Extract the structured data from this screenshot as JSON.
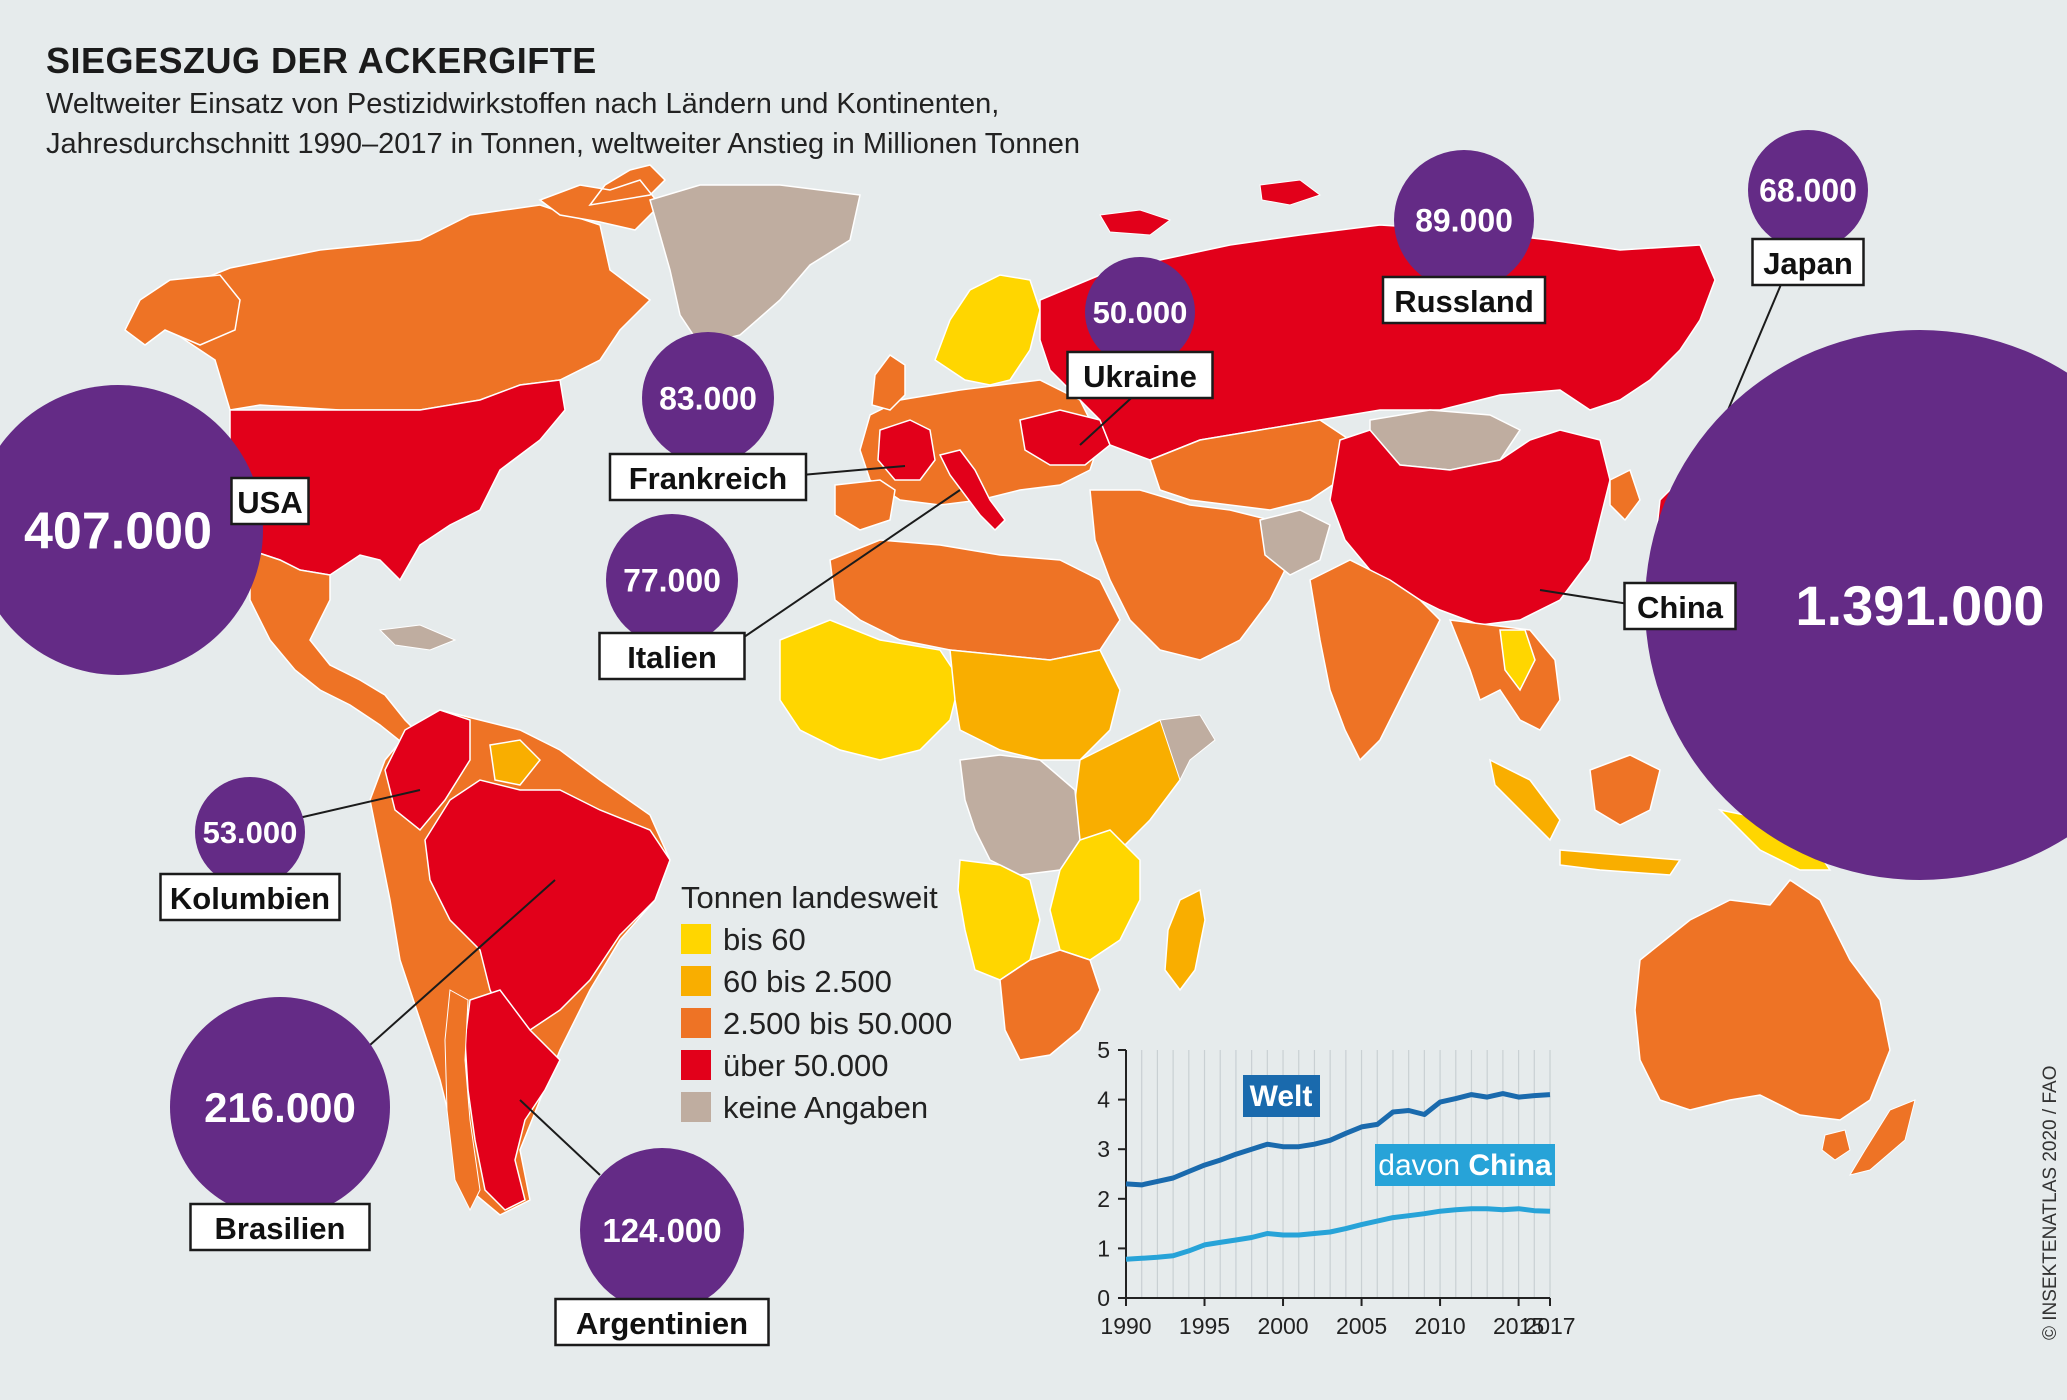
{
  "header": {
    "title": "SIEGESZUG DER ACKERGIFTE",
    "subtitle_line1": "Weltweiter Einsatz von Pestizidwirkstoffen nach Ländern und Kontinenten,",
    "subtitle_line2": "Jahresdurchschnitt 1990–2017 in Tonnen, weltweiter Anstieg in Millionen Tonnen"
  },
  "colors": {
    "bis_60": "#ffd600",
    "60_bis_2500": "#f9ae00",
    "2500_bis_50000": "#ee7325",
    "ueber_50000": "#e2001a",
    "keine_angaben": "#bfada0",
    "bubble": "#642b86",
    "ocean": "#e6ebec",
    "welt_line": "#1a6aad",
    "china_line": "#27a3d8"
  },
  "bubbles": [
    {
      "country": "USA",
      "value": "407.000"
    },
    {
      "country": "Frankreich",
      "value": "83.000"
    },
    {
      "country": "Italien",
      "value": "77.000"
    },
    {
      "country": "Ukraine",
      "value": "50.000"
    },
    {
      "country": "Russland",
      "value": "89.000"
    },
    {
      "country": "Japan",
      "value": "68.000"
    },
    {
      "country": "China",
      "value": "1.391.000"
    },
    {
      "country": "Kolumbien",
      "value": "53.000"
    },
    {
      "country": "Brasilien",
      "value": "216.000"
    },
    {
      "country": "Argentinien",
      "value": "124.000"
    }
  ],
  "legend": {
    "title": "Tonnen landesweit",
    "items": [
      "bis 60",
      "60 bis 2.500",
      "2.500 bis 50.000",
      "über 50.000",
      "keine Angaben"
    ]
  },
  "chart_data": {
    "type": "line",
    "x": [
      1990,
      1991,
      1992,
      1993,
      1994,
      1995,
      1996,
      1997,
      1998,
      1999,
      2000,
      2001,
      2002,
      2003,
      2004,
      2005,
      2006,
      2007,
      2008,
      2009,
      2010,
      2011,
      2012,
      2013,
      2014,
      2015,
      2016,
      2017
    ],
    "series": [
      {
        "name": "Welt",
        "values": [
          2.3,
          2.28,
          2.35,
          2.42,
          2.55,
          2.68,
          2.78,
          2.9,
          3.0,
          3.1,
          3.05,
          3.05,
          3.1,
          3.18,
          3.32,
          3.45,
          3.5,
          3.75,
          3.78,
          3.7,
          3.95,
          4.02,
          4.1,
          4.05,
          4.12,
          4.05,
          4.08,
          4.1
        ]
      },
      {
        "name": "davon China",
        "values": [
          0.78,
          0.8,
          0.82,
          0.85,
          0.95,
          1.07,
          1.12,
          1.17,
          1.22,
          1.3,
          1.27,
          1.27,
          1.3,
          1.33,
          1.4,
          1.48,
          1.55,
          1.62,
          1.66,
          1.7,
          1.75,
          1.78,
          1.8,
          1.8,
          1.78,
          1.8,
          1.76,
          1.75
        ]
      }
    ],
    "x_ticks": [
      "1990",
      "1995",
      "2000",
      "2005",
      "2010",
      "2015",
      "2017"
    ],
    "y_ticks": [
      "0",
      "1",
      "2",
      "3",
      "4",
      "5"
    ],
    "ylim": [
      0,
      5
    ],
    "series_label_1": "Welt",
    "series_label_2_prefix": "davon",
    "series_label_2_bold": "China"
  },
  "credit": "© INSEKTENATLAS 2020 / FAO"
}
